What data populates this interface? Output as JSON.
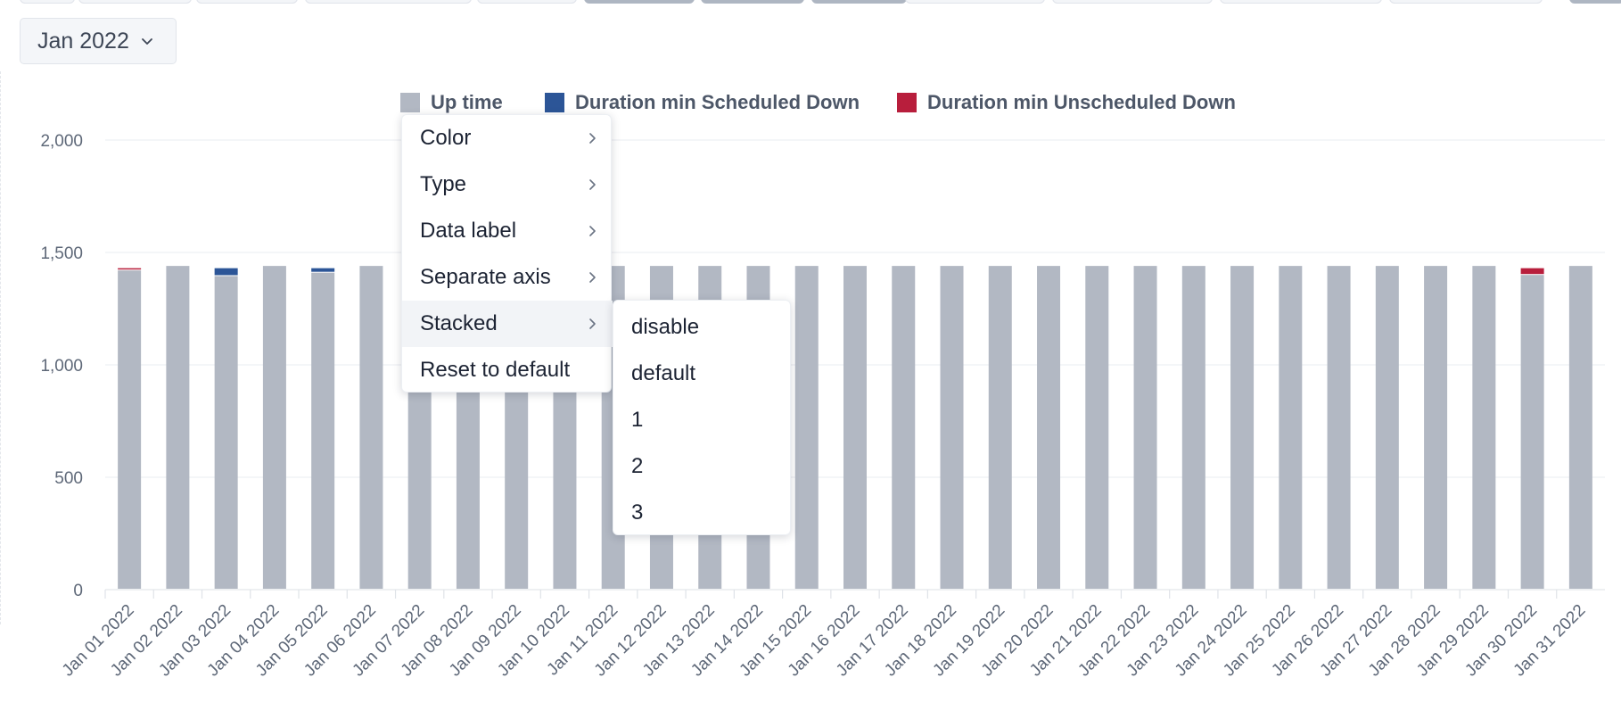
{
  "date_selector": {
    "label": "Jan 2022",
    "icon": "chevron-down-icon"
  },
  "legend": [
    {
      "label": "Up time",
      "color": "#b2b8c3"
    },
    {
      "label": "Duration min Scheduled Down",
      "color": "#2c5597"
    },
    {
      "label": "Duration min Unscheduled Down",
      "color": "#b81e3c"
    }
  ],
  "context_menu": {
    "items": [
      {
        "label": "Color",
        "has_submenu": true
      },
      {
        "label": "Type",
        "has_submenu": true
      },
      {
        "label": "Data label",
        "has_submenu": true
      },
      {
        "label": "Separate axis",
        "has_submenu": true
      },
      {
        "label": "Stacked",
        "has_submenu": true,
        "active": true
      },
      {
        "label": "Reset to default",
        "has_submenu": false
      }
    ],
    "submenu_items": [
      "disable",
      "default",
      "1",
      "2",
      "3"
    ]
  },
  "chart_data": {
    "type": "bar",
    "stacked": true,
    "grid": true,
    "legend_position": "top",
    "ylim": [
      0,
      2000
    ],
    "yticks": [
      0,
      500,
      1000,
      1500,
      2000
    ],
    "ytick_labels": [
      "0",
      "500",
      "1,000",
      "1,500",
      "2,000"
    ],
    "categories": [
      "Jan 01 2022",
      "Jan 02 2022",
      "Jan 03 2022",
      "Jan 04 2022",
      "Jan 05 2022",
      "Jan 06 2022",
      "Jan 07 2022",
      "Jan 08 2022",
      "Jan 09 2022",
      "Jan 10 2022",
      "Jan 11 2022",
      "Jan 12 2022",
      "Jan 13 2022",
      "Jan 14 2022",
      "Jan 15 2022",
      "Jan 16 2022",
      "Jan 17 2022",
      "Jan 18 2022",
      "Jan 19 2022",
      "Jan 20 2022",
      "Jan 21 2022",
      "Jan 22 2022",
      "Jan 23 2022",
      "Jan 24 2022",
      "Jan 25 2022",
      "Jan 26 2022",
      "Jan 27 2022",
      "Jan 28 2022",
      "Jan 29 2022",
      "Jan 30 2022",
      "Jan 31 2022"
    ],
    "series": [
      {
        "name": "Up time",
        "color": "#b2b8c3",
        "values": [
          1420,
          1440,
          1395,
          1440,
          1410,
          1440,
          1440,
          1440,
          1440,
          1440,
          1440,
          1440,
          1440,
          1440,
          1440,
          1440,
          1440,
          1440,
          1440,
          1440,
          1440,
          1440,
          1440,
          1440,
          1440,
          1440,
          1440,
          1440,
          1440,
          1400,
          1440
        ]
      },
      {
        "name": "Duration min Scheduled Down",
        "color": "#2c5597",
        "values": [
          0,
          0,
          35,
          0,
          20,
          0,
          0,
          0,
          0,
          0,
          0,
          0,
          0,
          0,
          0,
          0,
          0,
          0,
          0,
          0,
          0,
          0,
          0,
          0,
          0,
          0,
          0,
          0,
          0,
          0,
          0
        ]
      },
      {
        "name": "Duration min Unscheduled Down",
        "color": "#b81e3c",
        "values": [
          10,
          0,
          0,
          0,
          0,
          0,
          0,
          0,
          0,
          0,
          0,
          0,
          0,
          0,
          0,
          0,
          0,
          0,
          0,
          0,
          0,
          0,
          0,
          0,
          0,
          0,
          0,
          0,
          0,
          30,
          0
        ]
      }
    ]
  }
}
